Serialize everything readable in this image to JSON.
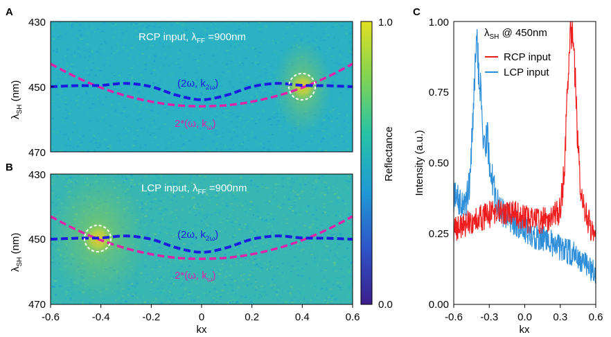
{
  "panels": {
    "A": {
      "letter": "A",
      "annotation_text": "RCP input, λ",
      "annotation_sub": "FF",
      "annotation_tail": " =900nm",
      "label_2w": "(2ω, k",
      "label_2w_sub": "2ω",
      "label_2w_tail": ")",
      "label_w": "2*(ω, k",
      "label_w_sub": "ω",
      "label_w_tail": ")",
      "ylabel": "λ",
      "ylabel_sub": "SH",
      "ylabel_unit": " (nm)",
      "yticks": [
        "430",
        "450",
        "470"
      ]
    },
    "B": {
      "letter": "B",
      "annotation_text": "LCP input, λ",
      "annotation_sub": "FF",
      "annotation_tail": " =900nm",
      "label_2w": "(2ω, k",
      "label_2w_sub": "2ω",
      "label_2w_tail": ")",
      "label_w": "2*(ω, k",
      "label_w_sub": "ω",
      "label_w_tail": ")",
      "ylabel": "λ",
      "ylabel_sub": "SH",
      "ylabel_unit": " (nm)",
      "yticks": [
        "430",
        "450",
        "470"
      ],
      "xticks": [
        "-0.6",
        "-0.4",
        "-0.2",
        "0",
        "0.2",
        "0.4",
        "0.6"
      ],
      "xlabel": "kx"
    },
    "C": {
      "letter": "C",
      "title": "λ",
      "title_sub": "SH",
      "title_tail": " @ 450nm",
      "ylabel": "Intensity (a.u.)",
      "xlabel": "kx",
      "xticks": [
        "-0.6",
        "-0.3",
        "0.0",
        "0.3",
        "0.6"
      ],
      "yticks": [
        "0.00",
        "0.25",
        "0.50",
        "0.75",
        "1.00"
      ]
    }
  },
  "colorbar": {
    "label": "Reflectance",
    "max_label": "1.0",
    "min_label": "0.0",
    "colors": [
      "#3b1e8c",
      "#2e55c9",
      "#1f9ad4",
      "#26c2a8",
      "#7fd453",
      "#e2e022"
    ]
  },
  "chart_data": [
    {
      "type": "heatmap",
      "panel": "A",
      "x_range": [
        -0.6,
        0.6
      ],
      "y_range": [
        430,
        470
      ],
      "y_inverted": true,
      "xlabel": "kx",
      "ylabel": "λSH (nm)",
      "hotspot": {
        "kx": 0.4,
        "lambda": 450,
        "intensity": 0.95
      },
      "curves": [
        {
          "name": "(2ω, k2ω)",
          "color": "#1c1ce0",
          "style": "dashed",
          "x": [
            -0.6,
            -0.5,
            -0.4,
            -0.3,
            -0.2,
            -0.1,
            0.0,
            0.1,
            0.2,
            0.3,
            0.4,
            0.5,
            0.6
          ],
          "y": [
            450.0,
            449.7,
            449.6,
            449.0,
            450.0,
            452.6,
            454.0,
            452.6,
            450.0,
            449.0,
            449.6,
            449.7,
            450.0
          ]
        },
        {
          "name": "2*(ω, kω)",
          "color": "#e024a8",
          "style": "dashed",
          "x": [
            -0.6,
            -0.5,
            -0.4,
            -0.3,
            -0.2,
            -0.1,
            0.0,
            0.1,
            0.2,
            0.3,
            0.4,
            0.5,
            0.6
          ],
          "y": [
            443.0,
            447.0,
            450.3,
            452.8,
            454.6,
            455.7,
            456.0,
            455.7,
            454.6,
            452.8,
            450.3,
            447.0,
            443.0
          ]
        }
      ]
    },
    {
      "type": "heatmap",
      "panel": "B",
      "x_range": [
        -0.6,
        0.6
      ],
      "y_range": [
        430,
        470
      ],
      "y_inverted": true,
      "xlabel": "kx",
      "ylabel": "λSH (nm)",
      "hotspot": {
        "kx": -0.4,
        "lambda": 450,
        "intensity": 0.85
      },
      "curves": [
        {
          "name": "(2ω, k2ω)",
          "color": "#1c1ce0",
          "style": "dashed",
          "x": [
            -0.6,
            -0.5,
            -0.4,
            -0.3,
            -0.2,
            -0.1,
            0.0,
            0.1,
            0.2,
            0.3,
            0.4,
            0.5,
            0.6
          ],
          "y": [
            450.0,
            449.7,
            449.6,
            449.0,
            450.0,
            452.6,
            454.0,
            452.6,
            450.0,
            449.0,
            449.6,
            449.7,
            450.0
          ]
        },
        {
          "name": "2*(ω, kω)",
          "color": "#e024a8",
          "style": "dashed",
          "x": [
            -0.6,
            -0.5,
            -0.4,
            -0.3,
            -0.2,
            -0.1,
            0.0,
            0.1,
            0.2,
            0.3,
            0.4,
            0.5,
            0.6
          ],
          "y": [
            443.0,
            447.0,
            450.3,
            452.8,
            454.6,
            455.7,
            456.0,
            455.7,
            454.6,
            452.8,
            450.3,
            447.0,
            443.0
          ]
        }
      ]
    },
    {
      "type": "line",
      "panel": "C",
      "title": "λSH @ 450nm",
      "xlabel": "kx",
      "ylabel": "Intensity (a.u.)",
      "xlim": [
        -0.6,
        0.6
      ],
      "ylim": [
        0.0,
        1.0
      ],
      "legend": "top-right",
      "series": [
        {
          "name": "RCP input",
          "color": "#ee1c1c",
          "x": [
            -0.6,
            -0.5,
            -0.4,
            -0.3,
            -0.2,
            -0.1,
            0.0,
            0.1,
            0.2,
            0.25,
            0.3,
            0.33,
            0.36,
            0.38,
            0.4,
            0.42,
            0.45,
            0.48,
            0.52,
            0.56,
            0.6
          ],
          "y": [
            0.26,
            0.28,
            0.3,
            0.32,
            0.33,
            0.32,
            0.3,
            0.3,
            0.3,
            0.31,
            0.33,
            0.45,
            0.72,
            0.92,
            0.97,
            0.85,
            0.55,
            0.36,
            0.31,
            0.27,
            0.26
          ]
        },
        {
          "name": "LCP input",
          "color": "#2e8fd8",
          "x": [
            -0.6,
            -0.55,
            -0.5,
            -0.47,
            -0.44,
            -0.42,
            -0.4,
            -0.38,
            -0.35,
            -0.32,
            -0.28,
            -0.24,
            -0.2,
            -0.1,
            0.0,
            0.1,
            0.2,
            0.3,
            0.4,
            0.5,
            0.6
          ],
          "y": [
            0.38,
            0.36,
            0.34,
            0.42,
            0.62,
            0.83,
            0.9,
            0.8,
            0.55,
            0.6,
            0.45,
            0.36,
            0.33,
            0.3,
            0.27,
            0.24,
            0.22,
            0.2,
            0.18,
            0.15,
            0.11
          ]
        }
      ]
    }
  ]
}
